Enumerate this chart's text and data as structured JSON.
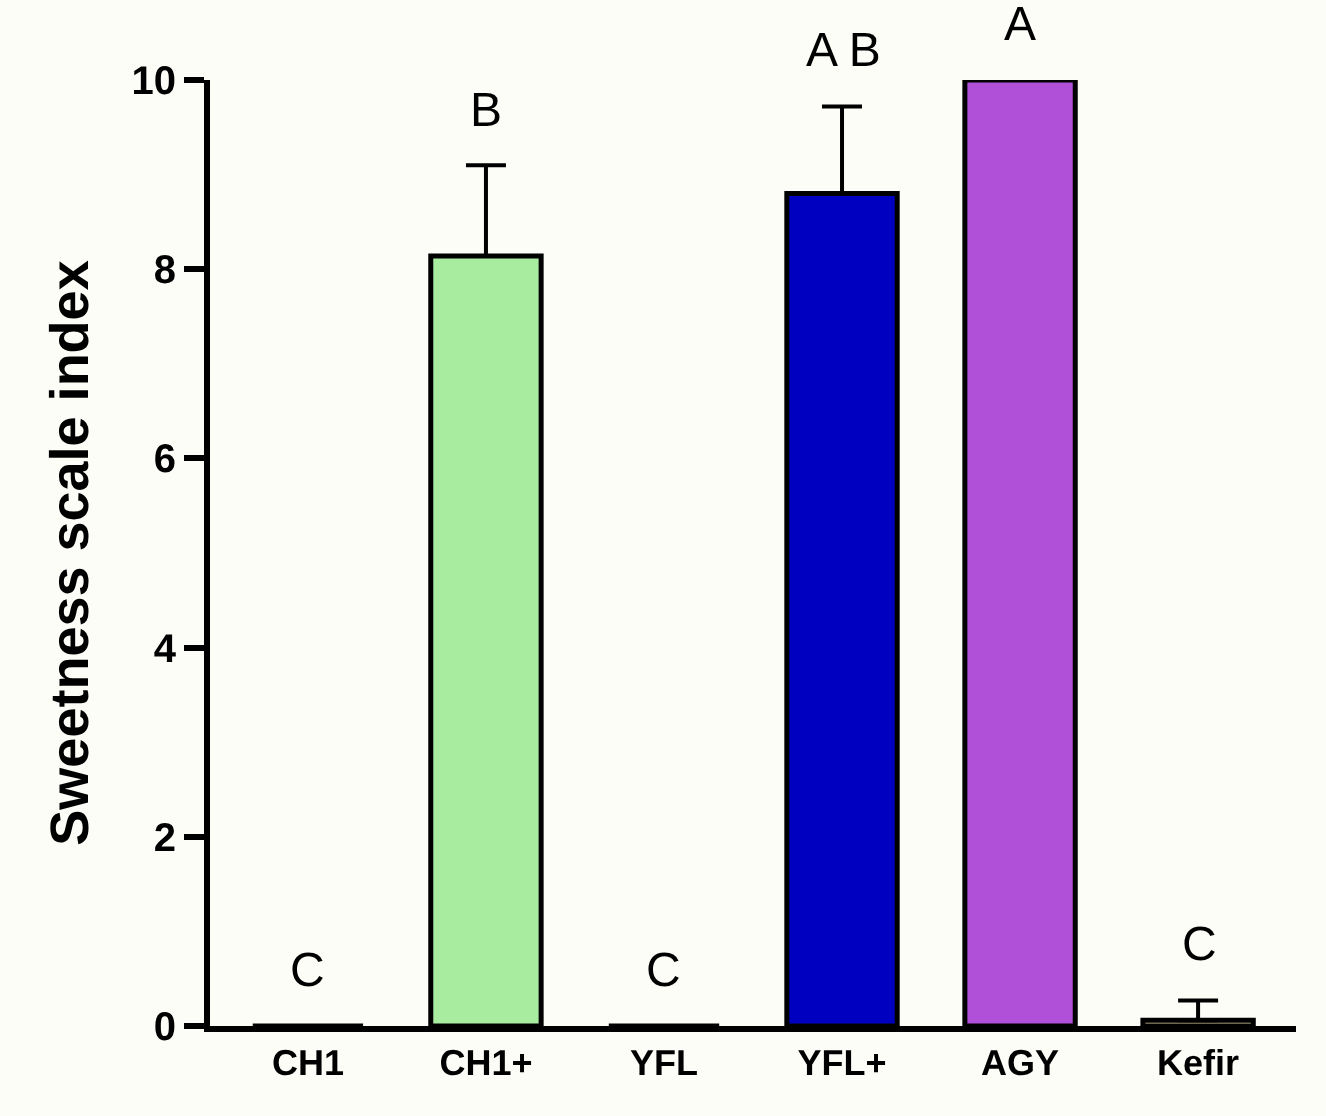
{
  "chart_data": {
    "type": "bar",
    "ylabel": "Sweetness scale index",
    "categories": [
      "CH1",
      "CH1+",
      "YFL",
      "YFL+",
      "AGY",
      "Kefir"
    ],
    "values": [
      0,
      8.14,
      0,
      8.8,
      10,
      0.06
    ],
    "errors": [
      null,
      [
        8.14,
        9.1
      ],
      null,
      [
        8.8,
        9.72
      ],
      null,
      [
        0.06,
        0.27
      ]
    ],
    "colors": [
      "#000000",
      "#a8eca0",
      "#000000",
      "#0000c0",
      "#b050d8",
      "#d8d0a0"
    ],
    "annotations": [
      "C",
      "B",
      "C",
      "A B",
      "A",
      "C"
    ],
    "ylim": [
      0,
      10
    ],
    "yticks": [
      0,
      2,
      4,
      6,
      8,
      10
    ],
    "grid": false,
    "legend": false
  }
}
